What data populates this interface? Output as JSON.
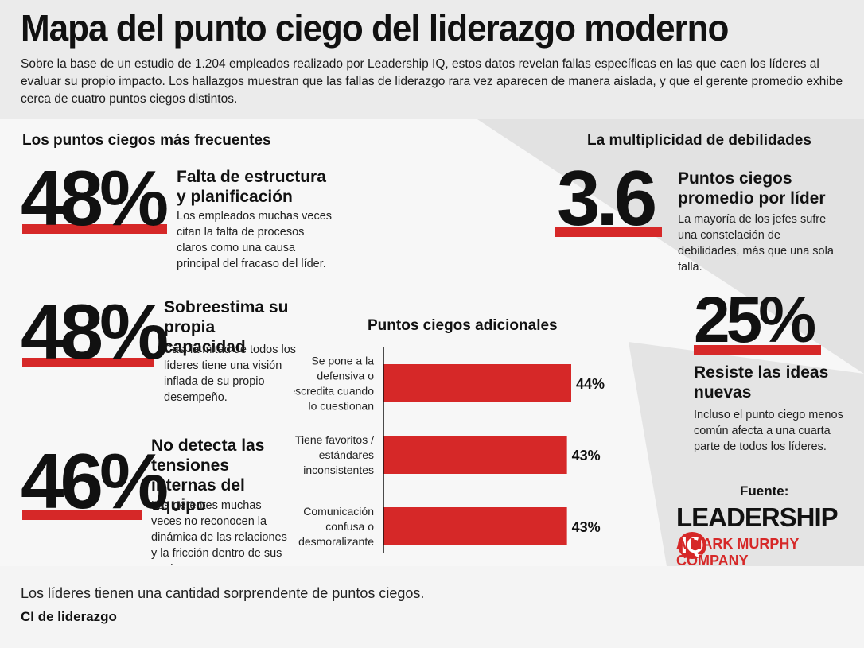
{
  "header": {
    "title": "Mapa del punto ciego del liderazgo moderno",
    "intro": "Sobre la base de un estudio de 1.204 empleados realizado por Leadership IQ, estos datos revelan fallas específicas en las que caen los líderes al evaluar su propio impacto. Los hallazgos muestran que las fallas de liderazgo rara vez aparecen de manera aislada, y que el gerente promedio exhibe cerca de cuatro puntos ciegos distintos."
  },
  "left_section": {
    "label": "Los puntos ciegos más frecuentes",
    "stats": [
      {
        "value": "48%",
        "title": "Falta de estructura y planificación",
        "description": "Los empleados muchas veces citan la falta de procesos claros como una causa principal del fracaso del líder."
      },
      {
        "value": "48%",
        "title": "Sobreestima su propia capacidad",
        "description": "Casi la mitad de todos los líderes tiene una visión inflada de su propio desempeño."
      },
      {
        "value": "46%",
        "title": "No detecta las tensiones internas del equipo",
        "description": "Los gerentes muchas veces no reconocen la dinámica de las relaciones y la fricción dentro de sus equipos."
      }
    ]
  },
  "right_section": {
    "label": "La multiplicidad de debilidades",
    "stats": [
      {
        "value": "3.6",
        "title": "Puntos ciegos promedio por líder",
        "description": "La mayoría de los jefes sufre una constelación de debilidades, más que una sola falla."
      },
      {
        "value": "25%",
        "title": "Resiste las ideas nuevas",
        "description": "Incluso el punto ciego menos común afecta a una cuarta parte de todos los líderes."
      }
    ]
  },
  "chart_data": {
    "type": "bar",
    "orientation": "horizontal",
    "title": "Puntos ciegos adicionales",
    "categories": [
      [
        "Se pone a la",
        "defensiva o",
        "descredita cuando",
        "lo cuestionan"
      ],
      [
        "Tiene favoritos /",
        "estándares",
        "inconsistentes"
      ],
      [
        "Comunicación",
        "confusa o",
        "desmoralizante"
      ]
    ],
    "values": [
      44,
      43,
      43
    ],
    "value_labels": [
      "44%",
      "43%",
      "43%"
    ],
    "bar_color": "#d62828"
  },
  "source": {
    "label": "Fuente:",
    "logo_main": "LEADERSHIP",
    "logo_iq": "IQ",
    "logo_sub": "A MARK MURPHY COMPANY"
  },
  "footer": {
    "caption": "Los líderes tienen una cantidad sorprendente de puntos ciegos.",
    "credit": "CI de liderazgo"
  },
  "colors": {
    "accent": "#d62828",
    "text": "#111111",
    "background": "#ededed"
  }
}
